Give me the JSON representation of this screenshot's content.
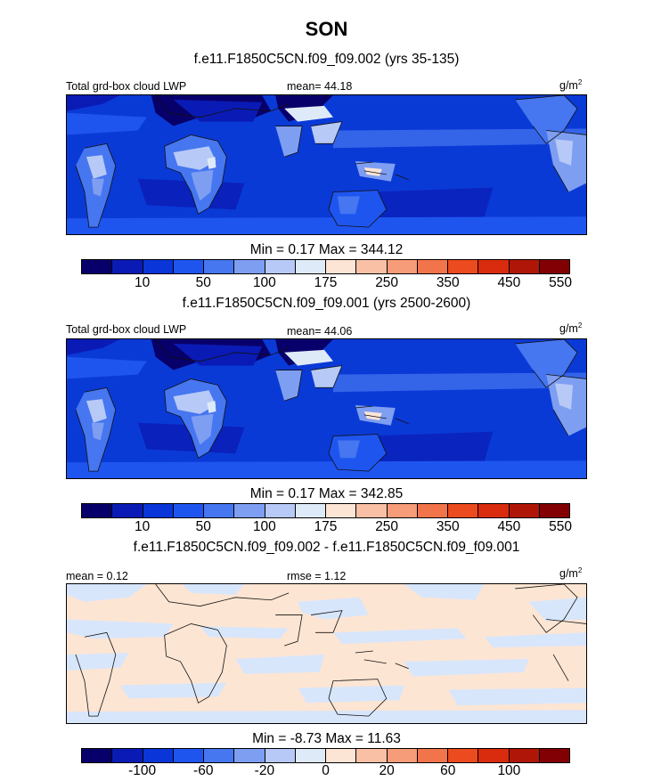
{
  "title": "SON",
  "panels": [
    {
      "header": "f.e11.F1850C5CN.f09_f09.002 (yrs 35-135)",
      "left_label": "Total grd-box cloud LWP",
      "mid_label": "mean=  44.18",
      "units": "g/m",
      "units_sup": "2",
      "stats": "Min =   0.17 Max = 344.12",
      "colorbar_ticks": [
        "10",
        "50",
        "100",
        "175",
        "250",
        "350",
        "450",
        "550"
      ]
    },
    {
      "header": "f.e11.F1850C5CN.f09_f09.001 (yrs 2500-2600)",
      "left_label": "Total grd-box cloud LWP",
      "mid_label": "mean=  44.06",
      "units": "g/m",
      "units_sup": "2",
      "stats": "Min =   0.17 Max = 342.85",
      "colorbar_ticks": [
        "10",
        "50",
        "100",
        "175",
        "250",
        "350",
        "450",
        "550"
      ]
    },
    {
      "header": "f.e11.F1850C5CN.f09_f09.002 - f.e11.F1850C5CN.f09_f09.001",
      "left_label": "mean =   0.12",
      "mid_label": "rmse =   1.12",
      "units": "g/m",
      "units_sup": "2",
      "stats": "Min =  -8.73 Max =  11.63",
      "colorbar_ticks": [
        "-100",
        "-60",
        "-20",
        "0",
        "20",
        "60",
        "100"
      ]
    }
  ],
  "colors": {
    "colorbar": [
      "#08006a",
      "#0a1bb5",
      "#0a35d8",
      "#1f55ef",
      "#4676f0",
      "#7e9ef2",
      "#b7c9f6",
      "#dfeaf8",
      "#fde5d6",
      "#f9c0a6",
      "#f69c79",
      "#f2744a",
      "#ec4a1f",
      "#d92b0d",
      "#b01608",
      "#820004"
    ],
    "ocean_base": "#0a3ad6",
    "diff_base": "#fde5d3",
    "diff_neg": "#d8e6fb",
    "coast": "#111111"
  }
}
